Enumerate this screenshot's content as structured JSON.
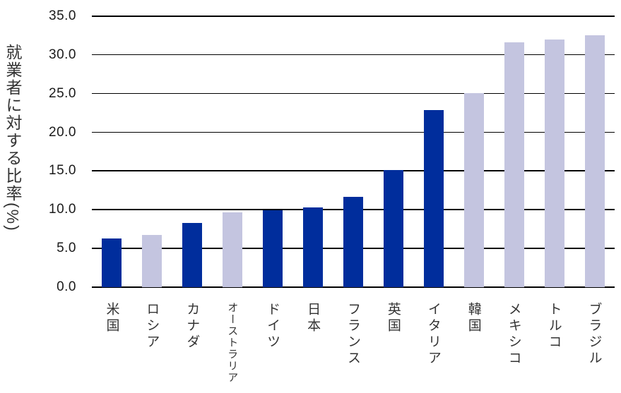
{
  "chart_data": {
    "type": "bar",
    "title": "",
    "xlabel": "",
    "ylabel": "就業者に対する比率(%)",
    "categories": [
      "米国",
      "ロシア",
      "カナダ",
      "オーストラリア",
      "ドイツ",
      "日本",
      "フランス",
      "英国",
      "イタリア",
      "韓国",
      "メキシコ",
      "トルコ",
      "ブラジル"
    ],
    "values": [
      6.3,
      6.7,
      8.3,
      9.7,
      9.9,
      10.3,
      11.7,
      15.1,
      22.9,
      25.1,
      31.6,
      32.0,
      32.5
    ],
    "bar_colors": [
      "#002D9C",
      "#C4C5E0",
      "#002D9C",
      "#C4C5E0",
      "#002D9C",
      "#002D9C",
      "#002D9C",
      "#002D9C",
      "#002D9C",
      "#C4C5E0",
      "#C4C5E0",
      "#C4C5E0",
      "#C4C5E0"
    ],
    "colors": {
      "dark_blue": "#002D9C",
      "light_lavender": "#C4C5E0",
      "gridline": "#000000",
      "background": "#FFFFFF"
    },
    "ylim": [
      0,
      35
    ],
    "ytick_interval": 5,
    "ytick_labels": [
      "0.0",
      "5.0",
      "10.0",
      "15.0",
      "20.0",
      "25.0",
      "30.0",
      "35.0"
    ],
    "grid": "horizontal",
    "legend_position": "none"
  }
}
